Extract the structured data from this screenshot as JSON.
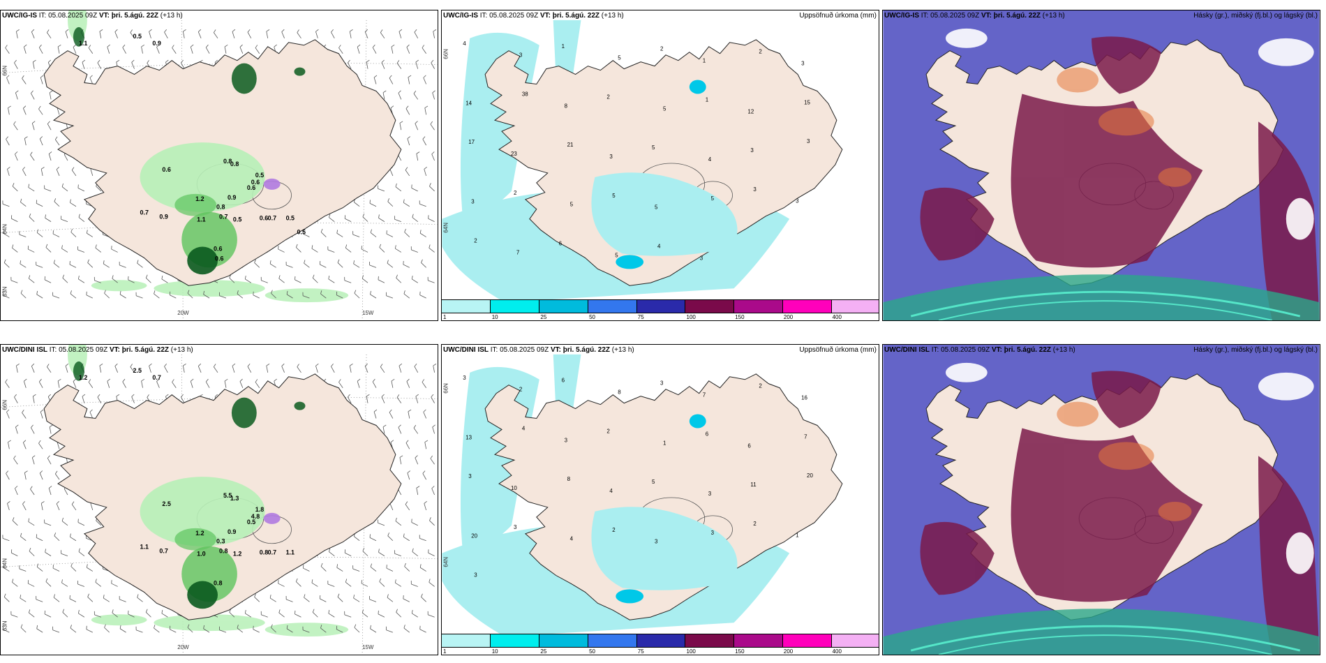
{
  "panels": [
    {
      "model": "UWC/IG-IS",
      "it_label": "IT:",
      "it_value": "05.08.2025 09Z",
      "vt_label": "VT:",
      "vt_value": "þri. 5.ágú. 22Z",
      "lead": "(+13 h)",
      "right_title": "",
      "type": "precip-wind",
      "values": [
        "0.5",
        "0.9",
        "1.1",
        "0.6",
        "0.8",
        "0.6",
        "0.5",
        "0.8",
        "0.6",
        "0.9",
        "1.2",
        "0.8",
        "0.7",
        "0.9",
        "1.1",
        "0.7",
        "0.5",
        "0.6",
        "0.7",
        "0.5",
        "0.6",
        "0.6",
        "0.5"
      ],
      "lon_ticks": [
        "20W",
        "15W"
      ],
      "lat_ticks": [
        "66N",
        "64N",
        "63N"
      ]
    },
    {
      "model": "UWC/IG-IS",
      "it_label": "IT:",
      "it_value": "05.08.2025 09Z",
      "vt_label": "VT:",
      "vt_value": "þri. 5.ágú. 22Z",
      "lead": "(+13 h)",
      "right_title": "Uppsöfnuð úrkoma (mm)",
      "type": "accum",
      "values": [
        "4",
        "3",
        "1",
        "5",
        "2",
        "1",
        "2",
        "3",
        "14",
        "38",
        "8",
        "2",
        "5",
        "1",
        "12",
        "15",
        "17",
        "23",
        "21",
        "3",
        "5",
        "4",
        "3",
        "3",
        "3",
        "2",
        "5",
        "5",
        "5",
        "5",
        "3",
        "3",
        "2",
        "7",
        "6",
        "5",
        "4",
        "3"
      ],
      "lat_ticks": [
        "66N",
        "64N"
      ]
    },
    {
      "model": "UWC/IG-IS",
      "it_label": "IT:",
      "it_value": "05.08.2025 09Z",
      "vt_label": "VT:",
      "vt_value": "þri. 5.ágú. 22Z",
      "lead": "(+13 h)",
      "right_title": "Hásky (gr.), miðský (fj.bl.) og lágský (bl.)",
      "type": "cloud"
    },
    {
      "model": "UWC/DINI ISL",
      "it_label": "IT:",
      "it_value": "05.08.2025 09Z",
      "vt_label": "VT:",
      "vt_value": "þri. 5.ágú. 22Z",
      "lead": "(+13 h)",
      "right_title": "",
      "type": "precip-wind",
      "values": [
        "2.5",
        "0.7",
        "1.2",
        "2.5",
        "5.5",
        "4.8",
        "1.8",
        "1.3",
        "0.5",
        "0.9",
        "1.2",
        "0.3",
        "1.1",
        "0.7",
        "1.0",
        "0.8",
        "1.2",
        "0.8",
        "0.7",
        "1.1",
        "0.8"
      ],
      "lon_ticks": [
        "20W",
        "15W"
      ],
      "lat_ticks": [
        "66N",
        "64N",
        "63N"
      ]
    },
    {
      "model": "UWC/DINI ISL",
      "it_label": "IT:",
      "it_value": "05.08.2025 09Z",
      "vt_label": "VT:",
      "vt_value": "þri. 5.ágú. 22Z",
      "lead": "(+13 h)",
      "right_title": "Uppsöfnuð úrkoma (mm)",
      "type": "accum",
      "values": [
        "3",
        "2",
        "6",
        "8",
        "3",
        "7",
        "2",
        "16",
        "13",
        "4",
        "3",
        "2",
        "1",
        "6",
        "6",
        "7",
        "3",
        "10",
        "8",
        "4",
        "5",
        "3",
        "11",
        "20",
        "20",
        "3",
        "4",
        "2",
        "3",
        "3",
        "2",
        "1",
        "3"
      ],
      "lat_ticks": [
        "66N",
        "64N"
      ]
    },
    {
      "model": "UWC/DINI ISL",
      "it_label": "IT:",
      "it_value": "05.08.2025 09Z",
      "vt_label": "VT:",
      "vt_value": "þri. 5.ágú. 22Z",
      "lead": "(+13 h)",
      "right_title": "Hásky (gr.), miðský (fj.bl.) og lágský (bl.)",
      "type": "cloud"
    }
  ],
  "legend": {
    "colors": [
      "#b8f4f4",
      "#00eeee",
      "#00bbdd",
      "#3377ee",
      "#2a2aaa",
      "#7a0a4a",
      "#aa0a8a",
      "#ff00bb",
      "#f4b0f4"
    ],
    "labels": [
      "1",
      "10",
      "25",
      "50",
      "75",
      "100",
      "150",
      "200",
      "400"
    ]
  },
  "colors": {
    "land": "#f5e6dc",
    "sea_precip": "#aaeef0",
    "green_light": "#b7f0b7",
    "green_mid": "#5ec45e",
    "green_dark": "#0a5a1e",
    "cloud_low": "#6464c8",
    "cloud_mid": "#7a1a4a",
    "cloud_high": "#2aa88a",
    "cloud_orange": "#e6783c"
  }
}
